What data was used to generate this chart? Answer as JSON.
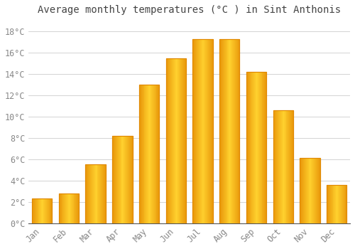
{
  "title": "Average monthly temperatures (°C ) in Sint Anthonis",
  "months": [
    "Jan",
    "Feb",
    "Mar",
    "Apr",
    "May",
    "Jun",
    "Jul",
    "Aug",
    "Sep",
    "Oct",
    "Nov",
    "Dec"
  ],
  "values": [
    2.3,
    2.8,
    5.5,
    8.2,
    13.0,
    15.5,
    17.3,
    17.3,
    14.2,
    10.6,
    6.1,
    3.6
  ],
  "bar_color_main": "#FDB931",
  "bar_color_edge": "#E08800",
  "background_color": "#FFFFFF",
  "plot_bg_color": "#FFFFFF",
  "grid_color": "#CCCCCC",
  "ylim": [
    0,
    19
  ],
  "yticks": [
    0,
    2,
    4,
    6,
    8,
    10,
    12,
    14,
    16,
    18
  ],
  "ytick_labels": [
    "0°C",
    "2°C",
    "4°C",
    "6°C",
    "8°C",
    "10°C",
    "12°C",
    "14°C",
    "16°C",
    "18°C"
  ],
  "title_fontsize": 10,
  "tick_fontsize": 8.5,
  "tick_color": "#888888",
  "font_family": "monospace",
  "bar_width": 0.75
}
